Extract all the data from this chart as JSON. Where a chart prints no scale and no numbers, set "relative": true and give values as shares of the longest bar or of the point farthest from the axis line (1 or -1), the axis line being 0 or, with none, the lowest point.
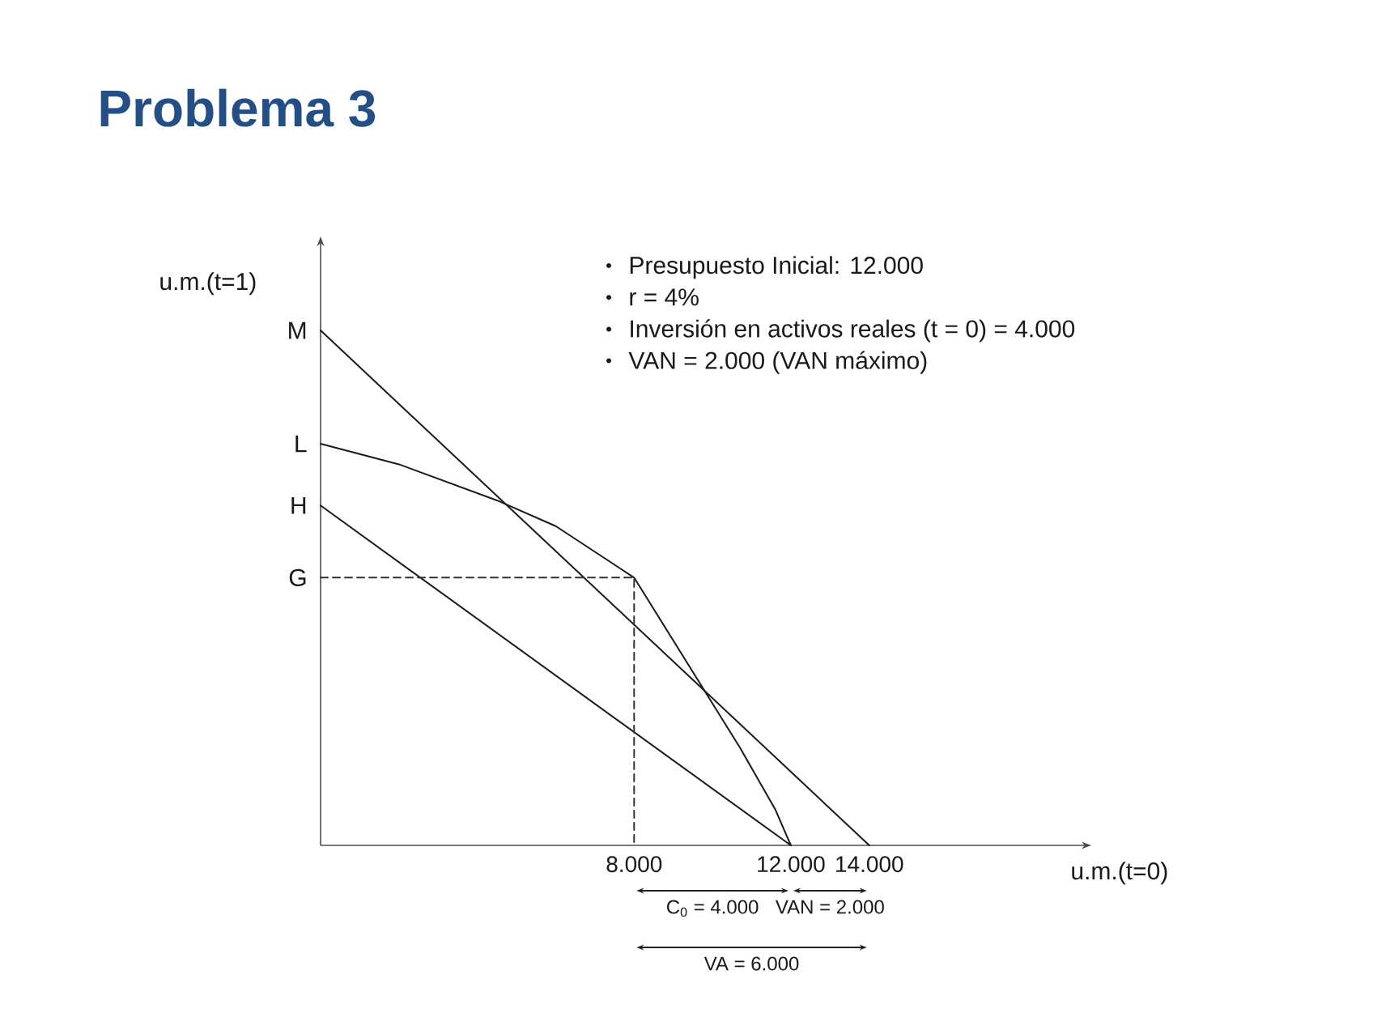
{
  "chart_data": {
    "type": "line",
    "title": "Problema 3",
    "xlabel": "u.m.(t=0)",
    "ylabel": "u.m.(t=1)",
    "relative": true,
    "xlim": [
      0,
      19500
    ],
    "xticks": [
      {
        "value": 8000,
        "label": "8.000"
      },
      {
        "value": 12000,
        "label": "12.000"
      },
      {
        "value": 14000,
        "label": "14.000"
      }
    ],
    "series": [
      {
        "color": "#1a1a1a",
        "x": [
          0,
          14000
        ],
        "values": [
          1,
          0
        ]
      },
      {
        "color": "#1a1a1a",
        "x": [
          0,
          2000,
          4500,
          6000,
          7000,
          8000,
          8900,
          9800,
          10700,
          11600,
          12000
        ],
        "values": [
          0.78,
          0.74,
          0.67,
          0.62,
          0.57,
          0.52,
          0.41,
          0.3,
          0.19,
          0.07,
          0
        ]
      },
      {
        "color": "#1a1a1a",
        "x": [
          0,
          12000
        ],
        "values": [
          0.66,
          0
        ]
      },
      {
        "color": "#333333",
        "line_style": "dashed",
        "x": [
          0,
          8000,
          8000
        ],
        "values": [
          0.52,
          0.52,
          0
        ]
      }
    ],
    "annotations": [
      "Presupuesto Inicial: 12.000",
      "r = 4%",
      "Inversión en activos reales (t = 0) = 4.000",
      "VAN = 2.000 (VAN máximo)",
      "M",
      "L",
      "H",
      "G",
      "C$_{0}$ = 4.000",
      "VAN = 2.000",
      "VA = 6.000"
    ],
    "line_style": "solid"
  }
}
